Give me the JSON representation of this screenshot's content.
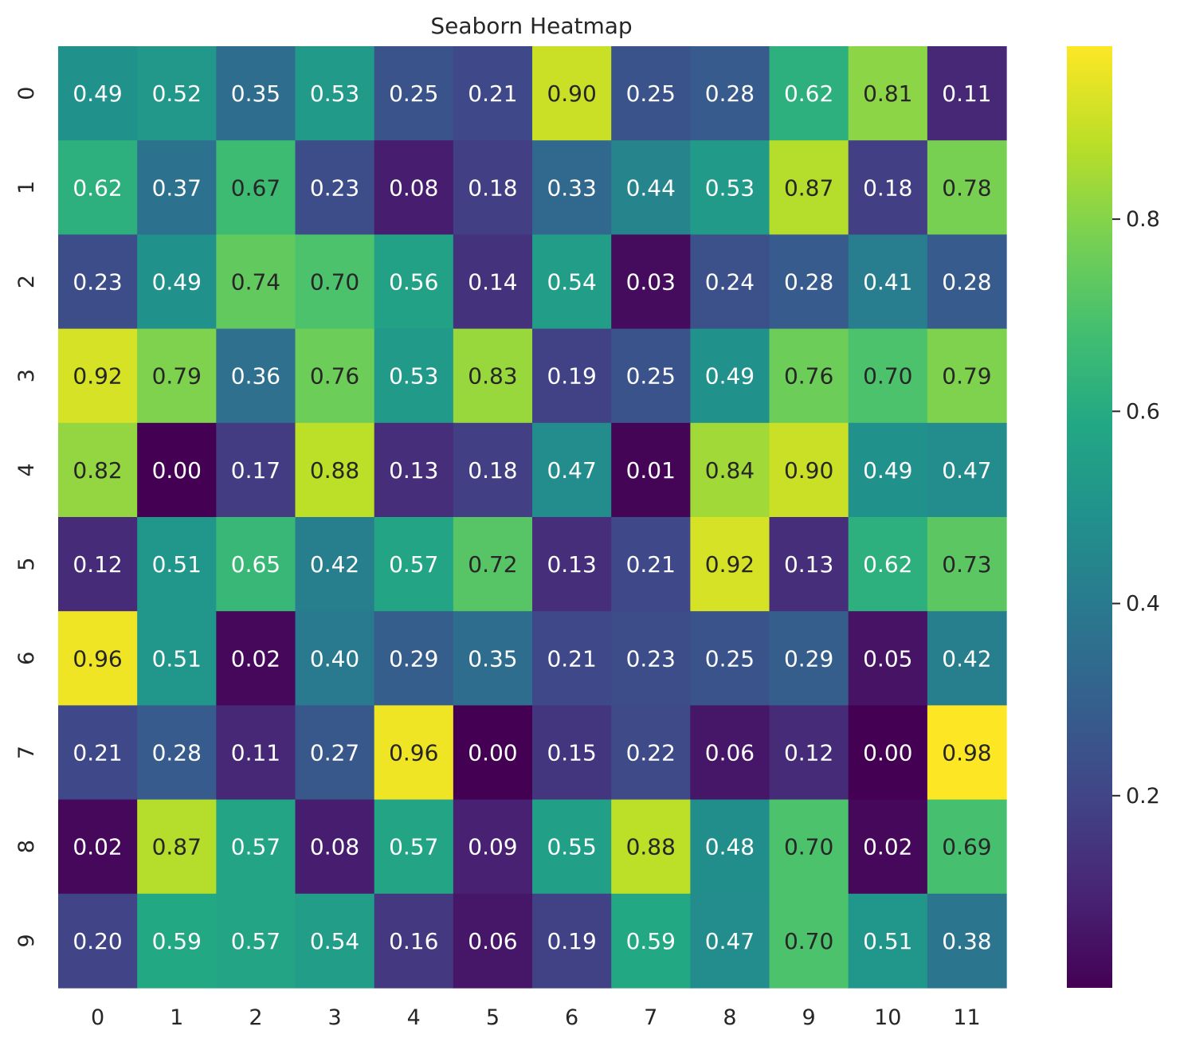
{
  "chart_data": {
    "type": "heatmap",
    "title": "Seaborn Heatmap",
    "colormap": "viridis",
    "annot_format": "0.00",
    "x_labels": [
      "0",
      "1",
      "2",
      "3",
      "4",
      "5",
      "6",
      "7",
      "8",
      "9",
      "10",
      "11"
    ],
    "y_labels": [
      "0",
      "1",
      "2",
      "3",
      "4",
      "5",
      "6",
      "7",
      "8",
      "9"
    ],
    "values": [
      [
        0.49,
        0.52,
        0.35,
        0.53,
        0.25,
        0.21,
        0.9,
        0.25,
        0.28,
        0.62,
        0.81,
        0.11
      ],
      [
        0.62,
        0.37,
        0.67,
        0.23,
        0.08,
        0.18,
        0.33,
        0.44,
        0.53,
        0.87,
        0.18,
        0.78
      ],
      [
        0.23,
        0.49,
        0.74,
        0.7,
        0.56,
        0.14,
        0.54,
        0.03,
        0.24,
        0.28,
        0.41,
        0.28
      ],
      [
        0.92,
        0.79,
        0.36,
        0.76,
        0.53,
        0.83,
        0.19,
        0.25,
        0.49,
        0.76,
        0.7,
        0.79
      ],
      [
        0.82,
        0.0,
        0.17,
        0.88,
        0.13,
        0.18,
        0.47,
        0.01,
        0.84,
        0.9,
        0.49,
        0.47
      ],
      [
        0.12,
        0.51,
        0.65,
        0.42,
        0.57,
        0.72,
        0.13,
        0.21,
        0.92,
        0.13,
        0.62,
        0.73
      ],
      [
        0.96,
        0.51,
        0.02,
        0.4,
        0.29,
        0.35,
        0.21,
        0.23,
        0.25,
        0.29,
        0.05,
        0.42
      ],
      [
        0.21,
        0.28,
        0.11,
        0.27,
        0.96,
        0.0,
        0.15,
        0.22,
        0.06,
        0.12,
        0.0,
        0.98
      ],
      [
        0.02,
        0.87,
        0.57,
        0.08,
        0.57,
        0.09,
        0.55,
        0.88,
        0.48,
        0.7,
        0.02,
        0.69
      ],
      [
        0.2,
        0.59,
        0.57,
        0.54,
        0.16,
        0.06,
        0.19,
        0.59,
        0.47,
        0.7,
        0.51,
        0.38
      ]
    ],
    "vmin": 0.0,
    "vmax": 0.98,
    "colorbar": {
      "ticks": [
        0.2,
        0.4,
        0.6,
        0.8
      ],
      "tick_labels": [
        "0.2",
        "0.4",
        "0.6",
        "0.8"
      ]
    }
  }
}
